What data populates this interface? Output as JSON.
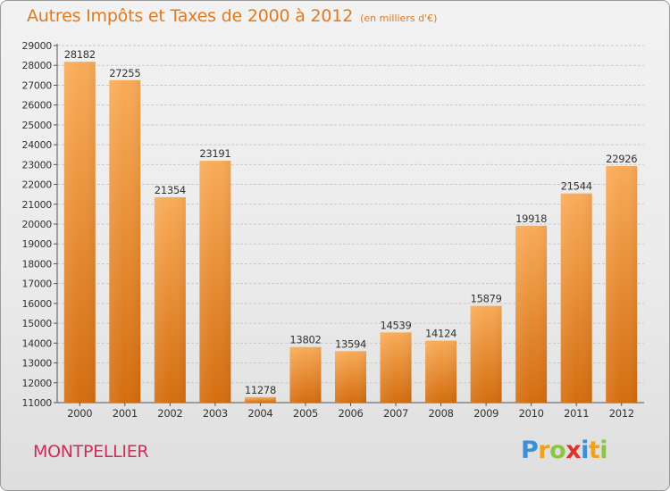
{
  "header": {
    "title": "Autres Impôts et Taxes de 2000 à 2012",
    "subtitle": "(en milliers d'€)"
  },
  "footer": {
    "city": "MONTPELLIER",
    "logo_text": "Proxiti"
  },
  "colors": {
    "bar_light": "#f7a54f",
    "bar_dark": "#d46d0f",
    "grid": "#c8c8c8",
    "title": "#e07a1f",
    "city": "#cc2e5a"
  },
  "chart_data": {
    "type": "bar",
    "title": "Autres Impôts et Taxes de 2000 à 2012",
    "subtitle": "(en milliers d'€)",
    "xlabel": "",
    "ylabel": "",
    "ylim": [
      11000,
      29000
    ],
    "yticks": [
      11000,
      12000,
      13000,
      14000,
      15000,
      16000,
      17000,
      18000,
      19000,
      20000,
      21000,
      22000,
      23000,
      24000,
      25000,
      26000,
      27000,
      28000,
      29000
    ],
    "grid": true,
    "categories": [
      "2000",
      "2001",
      "2002",
      "2003",
      "2004",
      "2005",
      "2006",
      "2007",
      "2008",
      "2009",
      "2010",
      "2011",
      "2012"
    ],
    "values": [
      28182,
      27255,
      21354,
      23191,
      11278,
      13802,
      13594,
      14539,
      14124,
      15879,
      19918,
      21544,
      22926
    ]
  }
}
